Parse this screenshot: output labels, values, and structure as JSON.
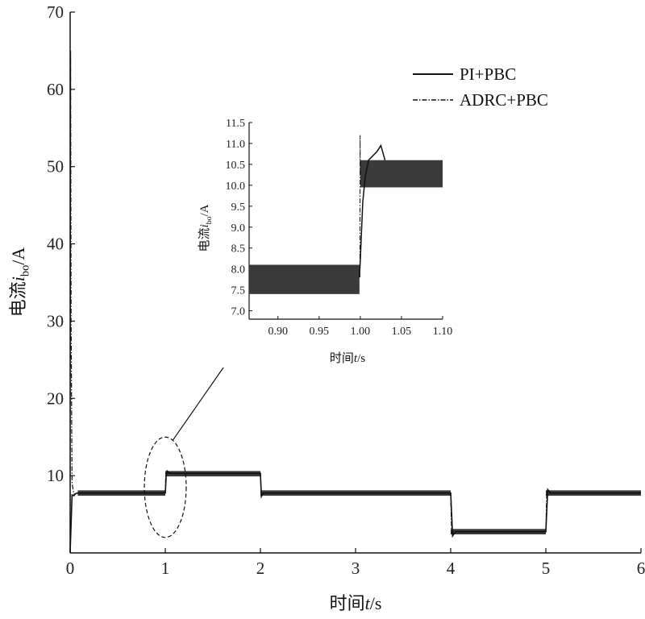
{
  "chart_data": [
    {
      "type": "line",
      "xlabel_prefix": "时间",
      "xlabel_var": "t",
      "xlabel_unit": "/s",
      "ylabel_prefix": "电流",
      "ylabel_var": "i",
      "ylabel_sub": "bo",
      "ylabel_unit": "/A",
      "xlim": [
        0,
        6
      ],
      "ylim": [
        0,
        70
      ],
      "xticks": [
        0,
        1,
        2,
        3,
        4,
        5,
        6
      ],
      "yticks": [
        10,
        20,
        30,
        40,
        50,
        60,
        70
      ],
      "legend_position": "top-right",
      "series": [
        {
          "name": "PI+PBC",
          "style": "solid",
          "x": [
            0,
            0.02,
            0.04,
            0.06,
            0.08,
            1.0,
            1.01,
            1.02,
            1.05,
            2.0,
            2.01,
            2.03,
            4.0,
            4.02,
            4.05,
            5.0,
            5.02,
            5.05,
            6.0
          ],
          "y": [
            0,
            7.5,
            7.4,
            7.7,
            7.75,
            7.75,
            10.0,
            10.6,
            10.3,
            10.3,
            7.3,
            7.75,
            7.75,
            2.2,
            2.75,
            2.75,
            8.2,
            7.75,
            7.75
          ],
          "ripple_bands": [
            {
              "x": [
                0.08,
                1.0
              ],
              "low": 7.4,
              "high": 8.1
            },
            {
              "x": [
                1.0,
                2.0
              ],
              "low": 9.9,
              "high": 10.6
            },
            {
              "x": [
                2.0,
                4.0
              ],
              "low": 7.4,
              "high": 8.1
            },
            {
              "x": [
                4.0,
                5.0
              ],
              "low": 2.4,
              "high": 3.1
            },
            {
              "x": [
                5.0,
                6.0
              ],
              "low": 7.4,
              "high": 8.1
            }
          ]
        },
        {
          "name": "ADRC+PBC",
          "style": "dashdot",
          "x": [
            0,
            0.005,
            0.01,
            0.02,
            0.04,
            0.08,
            1.0,
            1.005,
            1.02,
            2.0,
            2.01,
            2.03,
            4.0,
            4.01,
            4.03,
            5.0,
            5.01,
            5.03,
            6.0
          ],
          "y": [
            0,
            65,
            30,
            9,
            7.6,
            7.75,
            7.75,
            10.3,
            10.3,
            10.3,
            7.6,
            7.75,
            7.75,
            2.6,
            2.75,
            2.75,
            7.9,
            7.75,
            7.75
          ]
        }
      ],
      "annotation_region": {
        "x_center": 1.0,
        "y_center": 8.5,
        "x_radius": 0.22,
        "y_radius": 6.5
      }
    },
    {
      "type": "line",
      "inset": true,
      "xlabel_prefix": "时间",
      "xlabel_var": "t",
      "xlabel_unit": "/s",
      "ylabel_prefix": "电流",
      "ylabel_var": "i",
      "ylabel_sub": "bo",
      "ylabel_unit": "/A",
      "xlim": [
        0.865,
        1.1
      ],
      "ylim": [
        6.8,
        11.5
      ],
      "xticks": [
        "0.90",
        "0.95",
        "1.00",
        "1.05",
        "1.10"
      ],
      "yticks": [
        "7.0",
        "7.5",
        "8.0",
        "8.5",
        "9.0",
        "9.5",
        "10.0",
        "10.5",
        "11.0",
        "11.5"
      ],
      "series": [
        {
          "name": "PI+PBC",
          "style": "solid",
          "ripple_bands": [
            {
              "x": [
                0.865,
                0.999
              ],
              "low": 7.4,
              "high": 8.1
            },
            {
              "x": [
                1.0,
                1.1
              ],
              "low": 9.95,
              "high": 10.6
            }
          ],
          "x": [
            0.999,
            1.0,
            1.003,
            1.006,
            1.01,
            1.02,
            1.025,
            1.03
          ],
          "y": [
            7.8,
            8.2,
            9.6,
            10.2,
            10.6,
            10.8,
            10.95,
            10.6
          ]
        },
        {
          "name": "ADRC+PBC",
          "style": "dashdot",
          "x": [
            0.9995,
            0.9998,
            1.0,
            1.001
          ],
          "y": [
            7.8,
            11.2,
            10.3,
            10.3
          ]
        }
      ]
    }
  ]
}
